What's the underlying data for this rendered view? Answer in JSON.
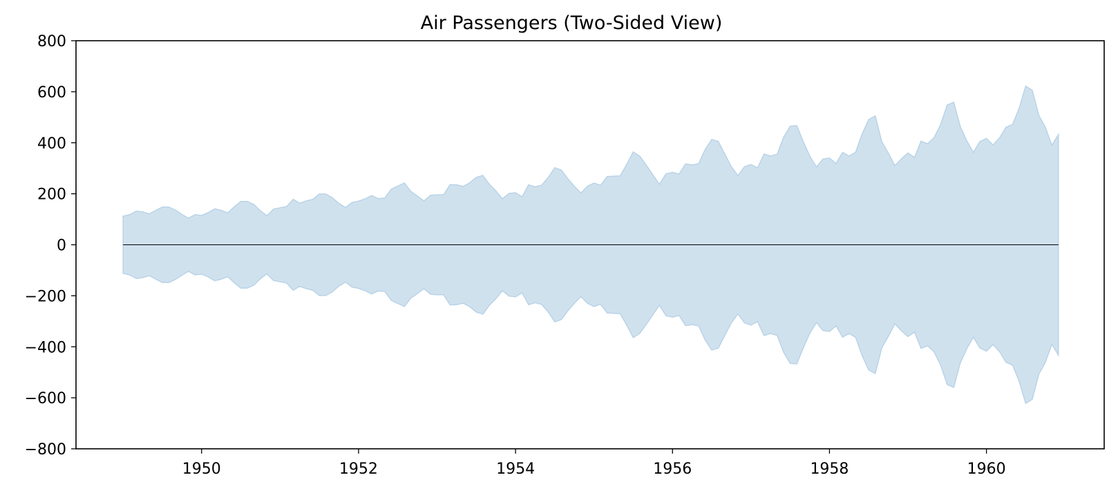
{
  "chart_data": {
    "type": "area",
    "title": "Air Passengers (Two-Sided View)",
    "xlabel": "",
    "ylabel": "",
    "xlim": [
      1948.4,
      1961.5
    ],
    "ylim": [
      -800,
      800
    ],
    "x_ticks": [
      1950,
      1952,
      1954,
      1956,
      1958,
      1960
    ],
    "x_tick_labels": [
      "1950",
      "1952",
      "1954",
      "1956",
      "1958",
      "1960"
    ],
    "y_ticks": [
      -800,
      -600,
      -400,
      -200,
      0,
      200,
      400,
      600,
      800
    ],
    "y_tick_labels": [
      "−800",
      "−600",
      "−400",
      "−200",
      "0",
      "200",
      "400",
      "600",
      "800"
    ],
    "grid": false,
    "legend": "none",
    "fill_color": "#d0e1ee",
    "edge_color": "#b9d3e7",
    "zero_line_color": "#000000",
    "series": {
      "x_start": "1949-01",
      "x_step": "monthly",
      "values": [
        112,
        118,
        132,
        129,
        121,
        135,
        148,
        148,
        136,
        119,
        104,
        118,
        115,
        126,
        141,
        135,
        125,
        149,
        170,
        170,
        158,
        133,
        114,
        140,
        145,
        150,
        178,
        163,
        172,
        178,
        199,
        199,
        184,
        162,
        146,
        166,
        171,
        180,
        193,
        181,
        183,
        218,
        230,
        242,
        209,
        191,
        172,
        194,
        196,
        196,
        236,
        235,
        229,
        243,
        264,
        272,
        237,
        211,
        180,
        201,
        204,
        188,
        235,
        227,
        234,
        264,
        302,
        293,
        259,
        229,
        203,
        229,
        242,
        233,
        267,
        269,
        270,
        315,
        364,
        347,
        312,
        274,
        237,
        278,
        284,
        277,
        317,
        313,
        318,
        374,
        413,
        405,
        355,
        306,
        271,
        306,
        315,
        301,
        356,
        348,
        355,
        422,
        465,
        467,
        404,
        347,
        305,
        336,
        340,
        318,
        362,
        348,
        363,
        435,
        491,
        505,
        404,
        359,
        310,
        337,
        360,
        342,
        406,
        396,
        420,
        472,
        548,
        559,
        463,
        407,
        362,
        405,
        417,
        391,
        419,
        461,
        472,
        535,
        622,
        606,
        508,
        461,
        390,
        432
      ]
    }
  }
}
